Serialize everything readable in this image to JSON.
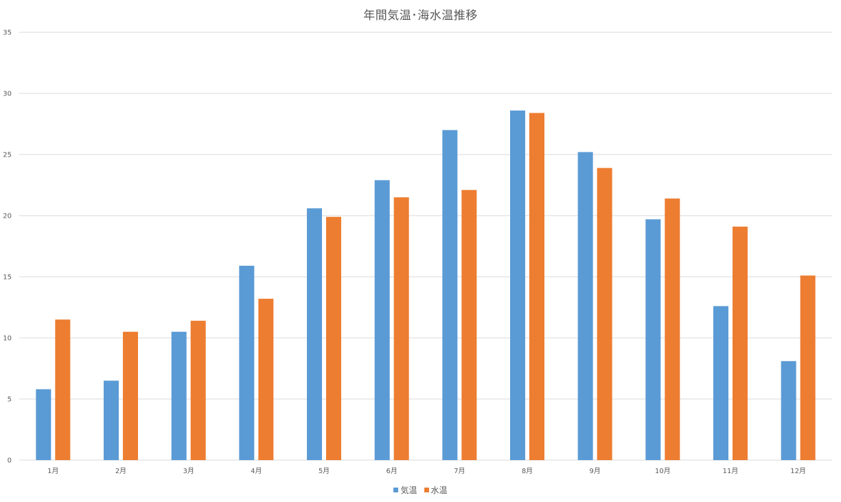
{
  "chart_data": {
    "type": "bar",
    "title": "年間気温･海水温推移",
    "categories": [
      "1月",
      "2月",
      "3月",
      "4月",
      "5月",
      "6月",
      "7月",
      "8月",
      "9月",
      "10月",
      "11月",
      "12月"
    ],
    "series": [
      {
        "name": "気温",
        "color": "#5B9BD5",
        "values": [
          5.8,
          6.5,
          10.5,
          15.9,
          20.6,
          22.9,
          27.0,
          28.6,
          25.2,
          19.7,
          12.6,
          8.1
        ]
      },
      {
        "name": "水温",
        "color": "#ED7D31",
        "values": [
          11.5,
          10.5,
          11.4,
          13.2,
          19.9,
          21.5,
          22.1,
          28.4,
          23.9,
          21.4,
          19.1,
          15.1
        ]
      }
    ],
    "xlabel": "",
    "ylabel": "",
    "ylim": [
      0,
      35
    ],
    "yticks": [
      0,
      5,
      10,
      15,
      20,
      25,
      30,
      35
    ],
    "grid": "horizontal",
    "legend_position": "bottom"
  }
}
